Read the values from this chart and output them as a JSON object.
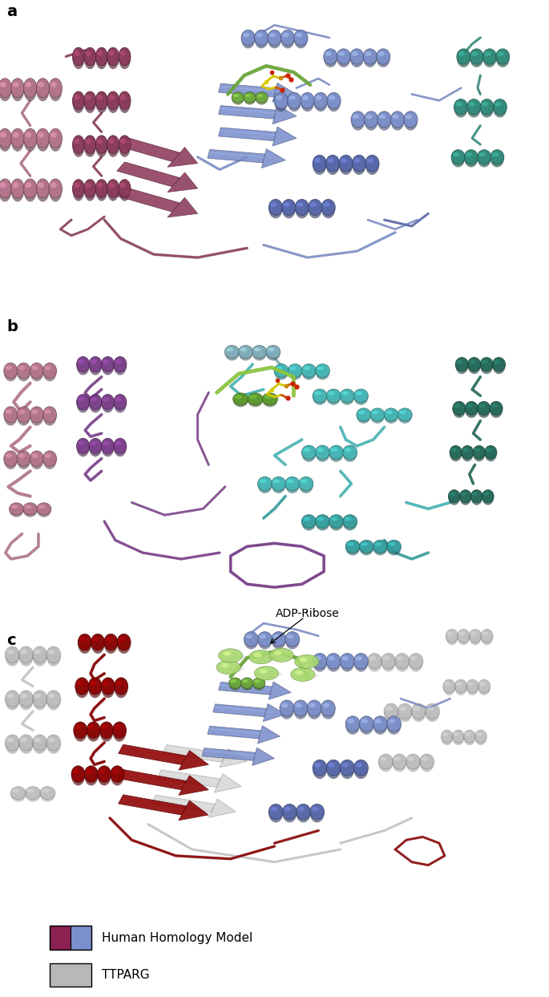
{
  "figure_width": 6.85,
  "figure_height": 12.43,
  "dpi": 100,
  "background_color": "#ffffff",
  "panel_labels": [
    "a",
    "b",
    "c"
  ],
  "panel_label_fontsize": 14,
  "panel_label_fontweight": "bold",
  "adp_ribose_label": "ADP-Ribose",
  "adp_ribose_fontsize": 10,
  "legend_label_fontsize": 11,
  "legend_human_label": "Human Homology Model",
  "legend_ttparg_label": "TTPARG",
  "colors": {
    "mauve": "#b5738a",
    "dark_red": "#8b3a5a",
    "blue": "#7b8fcc",
    "blue_dark": "#5566aa",
    "teal": "#2e8b7a",
    "green_loop": "#6daa3a",
    "cyan": "#40b8b8",
    "purple": "#7a3a8a",
    "gray": "#b8b8b8",
    "dark_gray": "#909090",
    "crimson": "#8b0000",
    "yellow_stick": "#d4c400",
    "orange_stick": "#cc5500",
    "red_atom": "#cc2200",
    "sphere_green": "#a8d870",
    "sphere_green_dark": "#78aa40",
    "teal_dark": "#206858"
  }
}
